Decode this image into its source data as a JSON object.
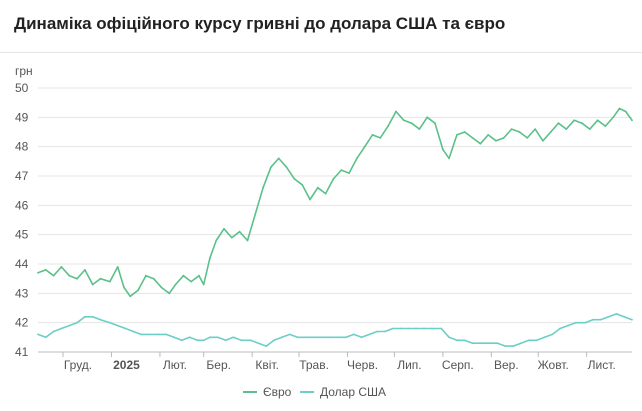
{
  "chart_data": {
    "type": "line",
    "title": "Динаміка офіційного курсу гривні до долара США та євро",
    "ylabel": "грн",
    "ylim": [
      41,
      50
    ],
    "yticks": [
      41,
      42,
      43,
      44,
      45,
      46,
      47,
      48,
      49,
      50
    ],
    "xlim": [
      "2024-11-15",
      "2025-11-30"
    ],
    "xticks": [
      {
        "date": "2024-12-01",
        "label": "Груд."
      },
      {
        "date": "2025-01-01",
        "label": "2025",
        "bold": true
      },
      {
        "date": "2025-02-01",
        "label": "Лют."
      },
      {
        "date": "2025-03-01",
        "label": "Бер."
      },
      {
        "date": "2025-04-01",
        "label": "Квіт."
      },
      {
        "date": "2025-05-01",
        "label": "Трав."
      },
      {
        "date": "2025-06-01",
        "label": "Черв."
      },
      {
        "date": "2025-07-01",
        "label": "Лип."
      },
      {
        "date": "2025-08-01",
        "label": "Серп."
      },
      {
        "date": "2025-09-01",
        "label": "Вер."
      },
      {
        "date": "2025-10-01",
        "label": "Жовт."
      },
      {
        "date": "2025-11-01",
        "label": "Лист."
      }
    ],
    "grid": "horizontal",
    "legend": "bottom",
    "series": [
      {
        "name": "Євро",
        "color": "#5cc08a",
        "points": [
          [
            "2024-11-15",
            43.7
          ],
          [
            "2024-11-20",
            43.8
          ],
          [
            "2024-11-25",
            43.6
          ],
          [
            "2024-11-30",
            43.9
          ],
          [
            "2024-12-05",
            43.6
          ],
          [
            "2024-12-10",
            43.5
          ],
          [
            "2024-12-15",
            43.8
          ],
          [
            "2024-12-20",
            43.3
          ],
          [
            "2024-12-25",
            43.5
          ],
          [
            "2024-12-31",
            43.4
          ],
          [
            "2025-01-05",
            43.9
          ],
          [
            "2025-01-09",
            43.2
          ],
          [
            "2025-01-13",
            42.9
          ],
          [
            "2025-01-18",
            43.1
          ],
          [
            "2025-01-23",
            43.6
          ],
          [
            "2025-01-28",
            43.5
          ],
          [
            "2025-02-02",
            43.2
          ],
          [
            "2025-02-07",
            43.0
          ],
          [
            "2025-02-11",
            43.3
          ],
          [
            "2025-02-16",
            43.6
          ],
          [
            "2025-02-21",
            43.4
          ],
          [
            "2025-02-26",
            43.6
          ],
          [
            "2025-03-01",
            43.3
          ],
          [
            "2025-03-05",
            44.2
          ],
          [
            "2025-03-09",
            44.8
          ],
          [
            "2025-03-14",
            45.2
          ],
          [
            "2025-03-19",
            44.9
          ],
          [
            "2025-03-24",
            45.1
          ],
          [
            "2025-03-29",
            44.8
          ],
          [
            "2025-04-03",
            45.7
          ],
          [
            "2025-04-08",
            46.6
          ],
          [
            "2025-04-13",
            47.3
          ],
          [
            "2025-04-18",
            47.6
          ],
          [
            "2025-04-23",
            47.3
          ],
          [
            "2025-04-28",
            46.9
          ],
          [
            "2025-05-03",
            46.7
          ],
          [
            "2025-05-08",
            46.2
          ],
          [
            "2025-05-13",
            46.6
          ],
          [
            "2025-05-18",
            46.4
          ],
          [
            "2025-05-23",
            46.9
          ],
          [
            "2025-05-28",
            47.2
          ],
          [
            "2025-06-02",
            47.1
          ],
          [
            "2025-06-07",
            47.6
          ],
          [
            "2025-06-12",
            48.0
          ],
          [
            "2025-06-17",
            48.4
          ],
          [
            "2025-06-22",
            48.3
          ],
          [
            "2025-06-27",
            48.7
          ],
          [
            "2025-07-02",
            49.2
          ],
          [
            "2025-07-07",
            48.9
          ],
          [
            "2025-07-12",
            48.8
          ],
          [
            "2025-07-17",
            48.6
          ],
          [
            "2025-07-22",
            49.0
          ],
          [
            "2025-07-27",
            48.8
          ],
          [
            "2025-08-01",
            47.9
          ],
          [
            "2025-08-05",
            47.6
          ],
          [
            "2025-08-10",
            48.4
          ],
          [
            "2025-08-15",
            48.5
          ],
          [
            "2025-08-20",
            48.3
          ],
          [
            "2025-08-25",
            48.1
          ],
          [
            "2025-08-30",
            48.4
          ],
          [
            "2025-09-04",
            48.2
          ],
          [
            "2025-09-09",
            48.3
          ],
          [
            "2025-09-14",
            48.6
          ],
          [
            "2025-09-19",
            48.5
          ],
          [
            "2025-09-24",
            48.3
          ],
          [
            "2025-09-29",
            48.6
          ],
          [
            "2025-10-04",
            48.2
          ],
          [
            "2025-10-09",
            48.5
          ],
          [
            "2025-10-14",
            48.8
          ],
          [
            "2025-10-19",
            48.6
          ],
          [
            "2025-10-24",
            48.9
          ],
          [
            "2025-10-29",
            48.8
          ],
          [
            "2025-11-03",
            48.6
          ],
          [
            "2025-11-08",
            48.9
          ],
          [
            "2025-11-13",
            48.7
          ],
          [
            "2025-11-18",
            49.0
          ],
          [
            "2025-11-22",
            49.3
          ],
          [
            "2025-11-26",
            49.2
          ],
          [
            "2025-11-30",
            48.9
          ]
        ]
      },
      {
        "name": "Долар США",
        "color": "#6ccfc6",
        "points": [
          [
            "2024-11-15",
            41.6
          ],
          [
            "2024-11-20",
            41.5
          ],
          [
            "2024-11-25",
            41.7
          ],
          [
            "2024-11-30",
            41.8
          ],
          [
            "2024-12-05",
            41.9
          ],
          [
            "2024-12-10",
            42.0
          ],
          [
            "2024-12-15",
            42.2
          ],
          [
            "2024-12-20",
            42.2
          ],
          [
            "2024-12-25",
            42.1
          ],
          [
            "2024-12-31",
            42.0
          ],
          [
            "2025-01-05",
            41.9
          ],
          [
            "2025-01-10",
            41.8
          ],
          [
            "2025-01-15",
            41.7
          ],
          [
            "2025-01-20",
            41.6
          ],
          [
            "2025-01-25",
            41.6
          ],
          [
            "2025-01-31",
            41.6
          ],
          [
            "2025-02-05",
            41.6
          ],
          [
            "2025-02-10",
            41.5
          ],
          [
            "2025-02-15",
            41.4
          ],
          [
            "2025-02-20",
            41.5
          ],
          [
            "2025-02-25",
            41.4
          ],
          [
            "2025-03-01",
            41.4
          ],
          [
            "2025-03-05",
            41.5
          ],
          [
            "2025-03-10",
            41.5
          ],
          [
            "2025-03-15",
            41.4
          ],
          [
            "2025-03-20",
            41.5
          ],
          [
            "2025-03-25",
            41.4
          ],
          [
            "2025-03-31",
            41.4
          ],
          [
            "2025-04-05",
            41.3
          ],
          [
            "2025-04-10",
            41.2
          ],
          [
            "2025-04-15",
            41.4
          ],
          [
            "2025-04-20",
            41.5
          ],
          [
            "2025-04-25",
            41.6
          ],
          [
            "2025-04-30",
            41.5
          ],
          [
            "2025-05-05",
            41.5
          ],
          [
            "2025-05-10",
            41.5
          ],
          [
            "2025-05-15",
            41.5
          ],
          [
            "2025-05-20",
            41.5
          ],
          [
            "2025-05-25",
            41.5
          ],
          [
            "2025-05-31",
            41.5
          ],
          [
            "2025-06-05",
            41.6
          ],
          [
            "2025-06-10",
            41.5
          ],
          [
            "2025-06-15",
            41.6
          ],
          [
            "2025-06-20",
            41.7
          ],
          [
            "2025-06-25",
            41.7
          ],
          [
            "2025-06-30",
            41.8
          ],
          [
            "2025-07-05",
            41.8
          ],
          [
            "2025-07-10",
            41.8
          ],
          [
            "2025-07-15",
            41.8
          ],
          [
            "2025-07-20",
            41.8
          ],
          [
            "2025-07-25",
            41.8
          ],
          [
            "2025-07-31",
            41.8
          ],
          [
            "2025-08-05",
            41.5
          ],
          [
            "2025-08-10",
            41.4
          ],
          [
            "2025-08-15",
            41.4
          ],
          [
            "2025-08-20",
            41.3
          ],
          [
            "2025-08-25",
            41.3
          ],
          [
            "2025-08-31",
            41.3
          ],
          [
            "2025-09-05",
            41.3
          ],
          [
            "2025-09-10",
            41.2
          ],
          [
            "2025-09-15",
            41.2
          ],
          [
            "2025-09-20",
            41.3
          ],
          [
            "2025-09-25",
            41.4
          ],
          [
            "2025-09-30",
            41.4
          ],
          [
            "2025-10-05",
            41.5
          ],
          [
            "2025-10-10",
            41.6
          ],
          [
            "2025-10-15",
            41.8
          ],
          [
            "2025-10-20",
            41.9
          ],
          [
            "2025-10-25",
            42.0
          ],
          [
            "2025-10-31",
            42.0
          ],
          [
            "2025-11-05",
            42.1
          ],
          [
            "2025-11-10",
            42.1
          ],
          [
            "2025-11-15",
            42.2
          ],
          [
            "2025-11-20",
            42.3
          ],
          [
            "2025-11-25",
            42.2
          ],
          [
            "2025-11-30",
            42.1
          ]
        ]
      }
    ]
  }
}
